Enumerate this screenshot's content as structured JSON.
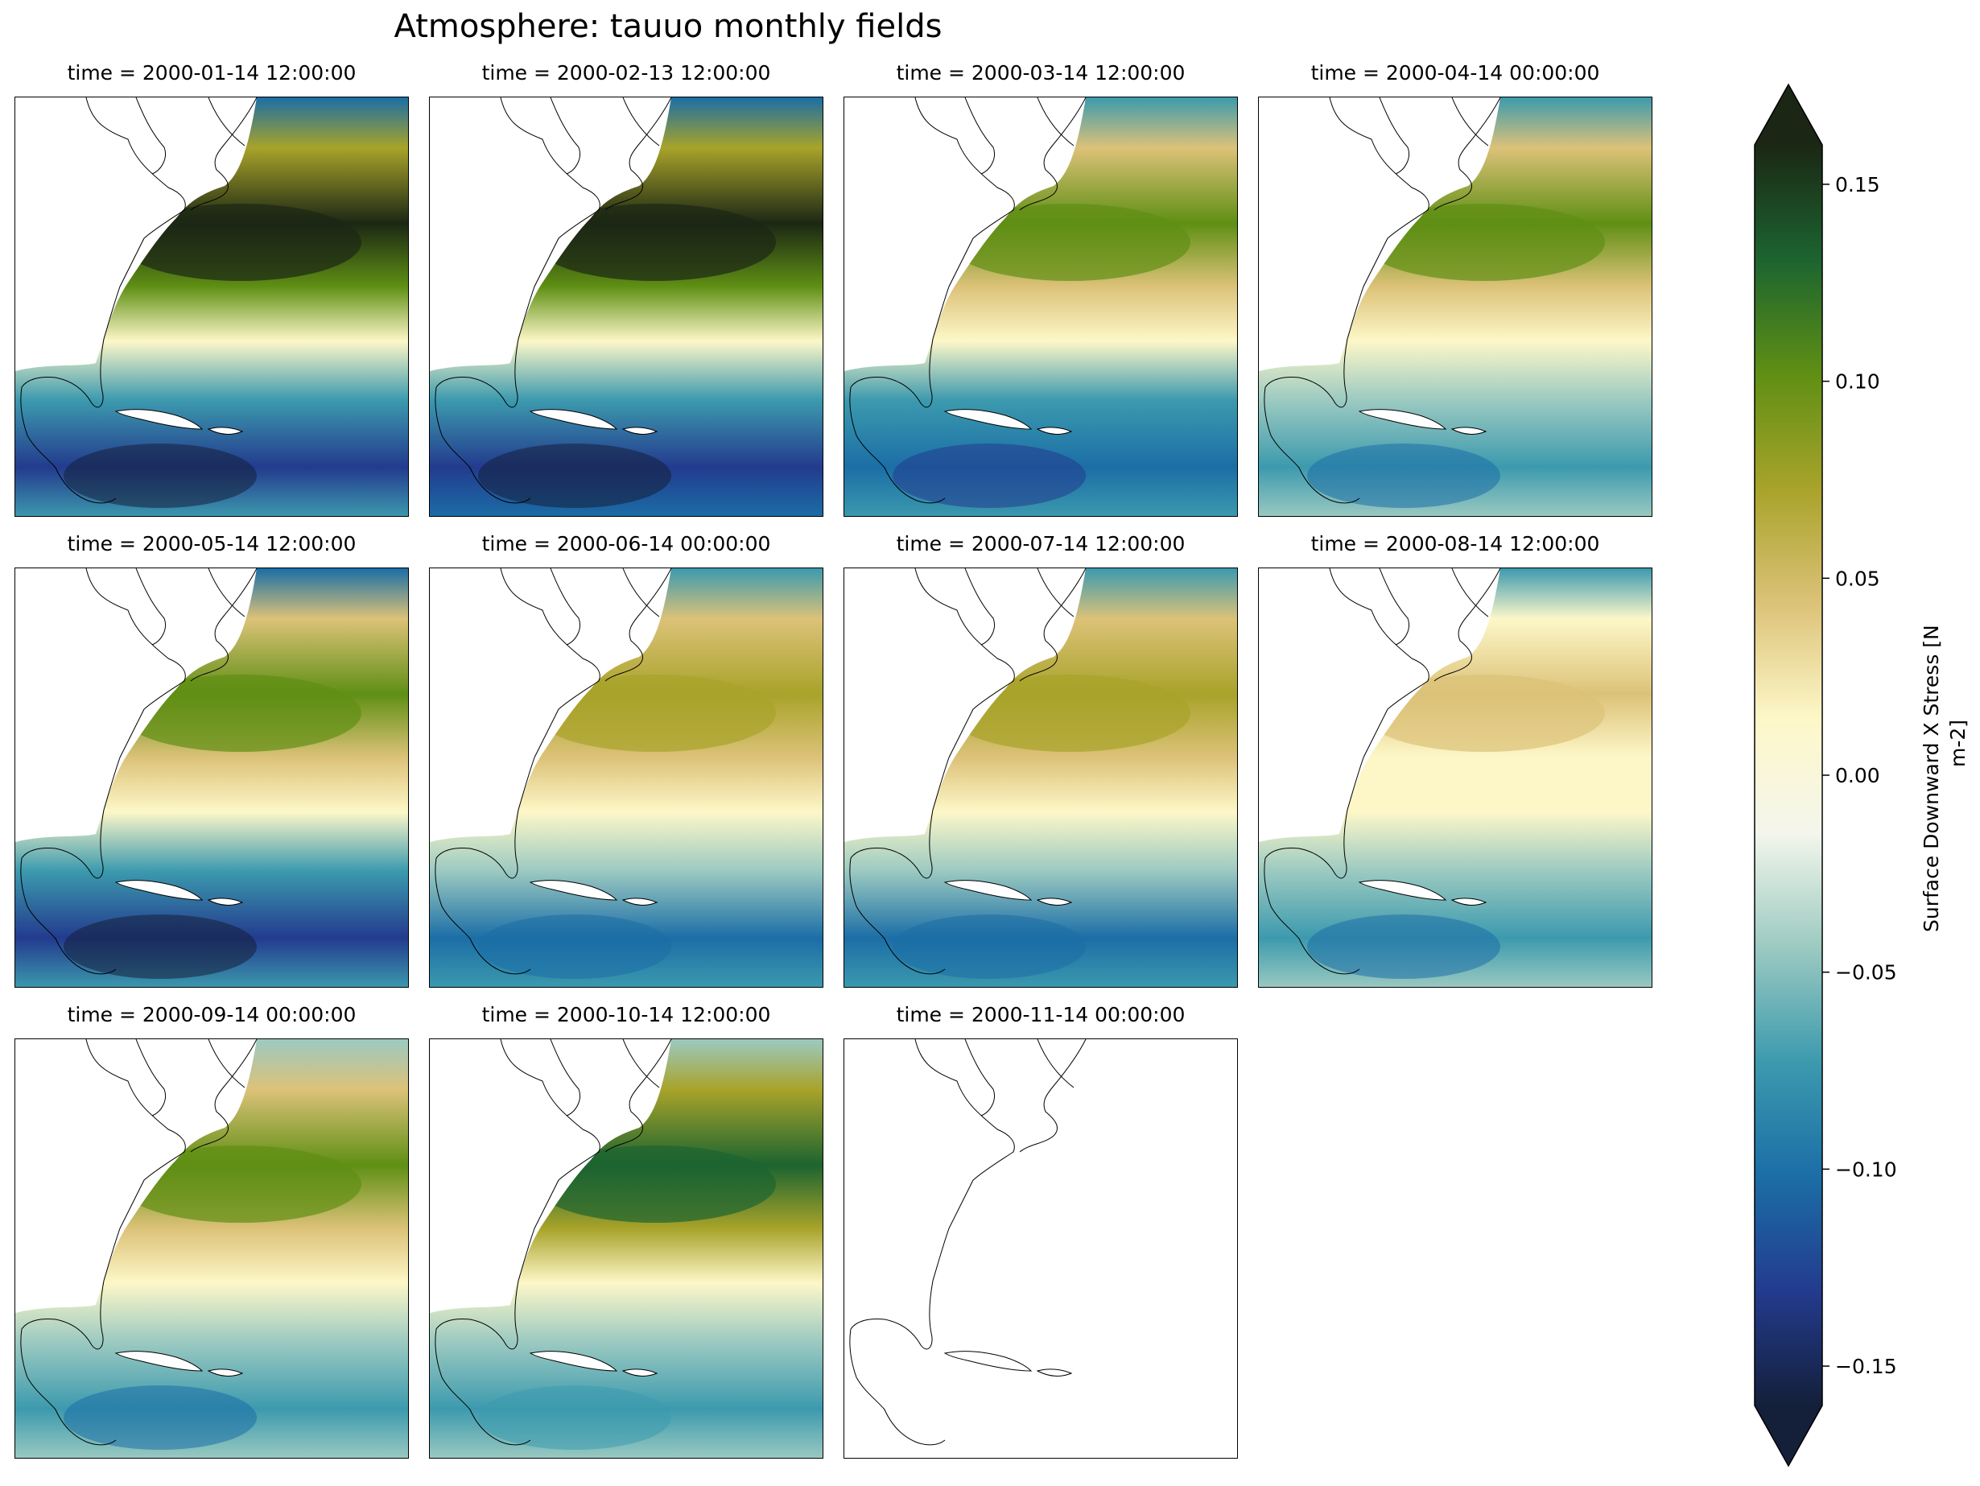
{
  "chart_data": {
    "type": "heatmap",
    "title": "Atmosphere: tauuo monthly fields",
    "variable": "tauuo",
    "panels": [
      {
        "time": "2000-01-14 12:00:00",
        "time_label": "time = 2000-01-14 12:00:00",
        "peak": 0.16,
        "trough": -0.15,
        "dominant": "strong positive band ~40N; negative near Caribbean"
      },
      {
        "time": "2000-02-13 12:00:00",
        "time_label": "time = 2000-02-13 12:00:00",
        "peak": 0.16,
        "trough": -0.16,
        "dominant": "strong positive band ~40N; strong negative NE corner"
      },
      {
        "time": "2000-03-14 12:00:00",
        "time_label": "time = 2000-03-14 12:00:00",
        "peak": 0.09,
        "trough": -0.12,
        "dominant": "moderate positive mid-latitudes"
      },
      {
        "time": "2000-04-14 00:00:00",
        "time_label": "time = 2000-04-14 00:00:00",
        "peak": 0.1,
        "trough": -0.1,
        "dominant": "moderate positive mid-latitudes"
      },
      {
        "time": "2000-05-14 12:00:00",
        "time_label": "time = 2000-05-14 12:00:00",
        "peak": 0.1,
        "trough": -0.15,
        "dominant": "positive mid-latitudes; strong negative NE corner"
      },
      {
        "time": "2000-06-14 00:00:00",
        "time_label": "time = 2000-06-14 00:00:00",
        "peak": 0.07,
        "trough": -0.11,
        "dominant": "weak positive mid-latitudes"
      },
      {
        "time": "2000-07-14 12:00:00",
        "time_label": "time = 2000-07-14 12:00:00",
        "peak": 0.08,
        "trough": -0.11,
        "dominant": "weak positive mid-latitudes"
      },
      {
        "time": "2000-08-14 12:00:00",
        "time_label": "time = 2000-08-14 12:00:00",
        "peak": 0.04,
        "trough": -0.1,
        "dominant": "weak positive mid-latitudes"
      },
      {
        "time": "2000-09-14 00:00:00",
        "time_label": "time = 2000-09-14 00:00:00",
        "peak": 0.1,
        "trough": -0.09,
        "dominant": "positive NE; negative subtropics"
      },
      {
        "time": "2000-10-14 12:00:00",
        "time_label": "time = 2000-10-14 12:00:00",
        "peak": 0.14,
        "trough": -0.07,
        "dominant": "strong positive NE"
      },
      {
        "time": "2000-11-14 00:00:00",
        "time_label": "time = 2000-11-14 00:00:00",
        "peak": null,
        "trough": null,
        "dominant": "no data"
      }
    ],
    "colorbar": {
      "label": "Surface Downward X Stress [N m-2]",
      "label_line1": "Surface Downward X Stress [N",
      "label_line2": "m-2]",
      "vmin": -0.16,
      "vmax": 0.16,
      "extend": "both",
      "ticks": [
        -0.15,
        -0.1,
        -0.05,
        0.0,
        0.05,
        0.1,
        0.15
      ],
      "tick_labels": [
        "−0.15",
        "−0.10",
        "−0.05",
        "0.00",
        "0.05",
        "0.10",
        "0.15"
      ],
      "colors": [
        "#141f3a",
        "#233b8e",
        "#1b6ea6",
        "#3c9aae",
        "#9ccac1",
        "#f4f6ec",
        "#fdf7c8",
        "#dcc278",
        "#a8a32a",
        "#5f8f14",
        "#1c6430",
        "#1b2714"
      ]
    },
    "layout_grid": {
      "rows": 3,
      "cols": 4
    }
  }
}
